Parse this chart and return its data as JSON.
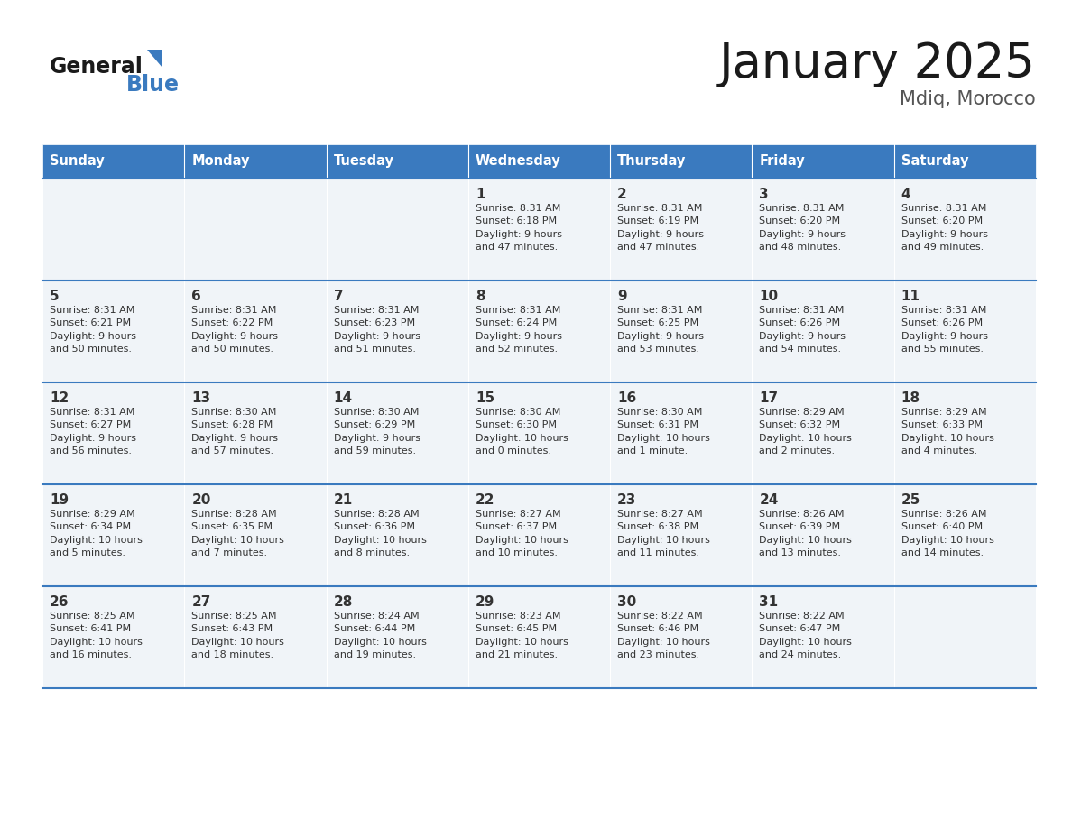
{
  "title": "January 2025",
  "subtitle": "Mdiq, Morocco",
  "days_of_week": [
    "Sunday",
    "Monday",
    "Tuesday",
    "Wednesday",
    "Thursday",
    "Friday",
    "Saturday"
  ],
  "header_bg": "#3a7abf",
  "header_text": "#ffffff",
  "row_bg": "#f0f4f8",
  "cell_border_color": "#3a7abf",
  "day_number_color": "#333333",
  "info_text_color": "#333333",
  "title_color": "#1a1a1a",
  "subtitle_color": "#555555",
  "logo_general_color": "#1a1a1a",
  "logo_blue_color": "#3a7abf",
  "weeks": [
    [
      {
        "day": null,
        "info": null
      },
      {
        "day": null,
        "info": null
      },
      {
        "day": null,
        "info": null
      },
      {
        "day": 1,
        "info": "Sunrise: 8:31 AM\nSunset: 6:18 PM\nDaylight: 9 hours\nand 47 minutes."
      },
      {
        "day": 2,
        "info": "Sunrise: 8:31 AM\nSunset: 6:19 PM\nDaylight: 9 hours\nand 47 minutes."
      },
      {
        "day": 3,
        "info": "Sunrise: 8:31 AM\nSunset: 6:20 PM\nDaylight: 9 hours\nand 48 minutes."
      },
      {
        "day": 4,
        "info": "Sunrise: 8:31 AM\nSunset: 6:20 PM\nDaylight: 9 hours\nand 49 minutes."
      }
    ],
    [
      {
        "day": 5,
        "info": "Sunrise: 8:31 AM\nSunset: 6:21 PM\nDaylight: 9 hours\nand 50 minutes."
      },
      {
        "day": 6,
        "info": "Sunrise: 8:31 AM\nSunset: 6:22 PM\nDaylight: 9 hours\nand 50 minutes."
      },
      {
        "day": 7,
        "info": "Sunrise: 8:31 AM\nSunset: 6:23 PM\nDaylight: 9 hours\nand 51 minutes."
      },
      {
        "day": 8,
        "info": "Sunrise: 8:31 AM\nSunset: 6:24 PM\nDaylight: 9 hours\nand 52 minutes."
      },
      {
        "day": 9,
        "info": "Sunrise: 8:31 AM\nSunset: 6:25 PM\nDaylight: 9 hours\nand 53 minutes."
      },
      {
        "day": 10,
        "info": "Sunrise: 8:31 AM\nSunset: 6:26 PM\nDaylight: 9 hours\nand 54 minutes."
      },
      {
        "day": 11,
        "info": "Sunrise: 8:31 AM\nSunset: 6:26 PM\nDaylight: 9 hours\nand 55 minutes."
      }
    ],
    [
      {
        "day": 12,
        "info": "Sunrise: 8:31 AM\nSunset: 6:27 PM\nDaylight: 9 hours\nand 56 minutes."
      },
      {
        "day": 13,
        "info": "Sunrise: 8:30 AM\nSunset: 6:28 PM\nDaylight: 9 hours\nand 57 minutes."
      },
      {
        "day": 14,
        "info": "Sunrise: 8:30 AM\nSunset: 6:29 PM\nDaylight: 9 hours\nand 59 minutes."
      },
      {
        "day": 15,
        "info": "Sunrise: 8:30 AM\nSunset: 6:30 PM\nDaylight: 10 hours\nand 0 minutes."
      },
      {
        "day": 16,
        "info": "Sunrise: 8:30 AM\nSunset: 6:31 PM\nDaylight: 10 hours\nand 1 minute."
      },
      {
        "day": 17,
        "info": "Sunrise: 8:29 AM\nSunset: 6:32 PM\nDaylight: 10 hours\nand 2 minutes."
      },
      {
        "day": 18,
        "info": "Sunrise: 8:29 AM\nSunset: 6:33 PM\nDaylight: 10 hours\nand 4 minutes."
      }
    ],
    [
      {
        "day": 19,
        "info": "Sunrise: 8:29 AM\nSunset: 6:34 PM\nDaylight: 10 hours\nand 5 minutes."
      },
      {
        "day": 20,
        "info": "Sunrise: 8:28 AM\nSunset: 6:35 PM\nDaylight: 10 hours\nand 7 minutes."
      },
      {
        "day": 21,
        "info": "Sunrise: 8:28 AM\nSunset: 6:36 PM\nDaylight: 10 hours\nand 8 minutes."
      },
      {
        "day": 22,
        "info": "Sunrise: 8:27 AM\nSunset: 6:37 PM\nDaylight: 10 hours\nand 10 minutes."
      },
      {
        "day": 23,
        "info": "Sunrise: 8:27 AM\nSunset: 6:38 PM\nDaylight: 10 hours\nand 11 minutes."
      },
      {
        "day": 24,
        "info": "Sunrise: 8:26 AM\nSunset: 6:39 PM\nDaylight: 10 hours\nand 13 minutes."
      },
      {
        "day": 25,
        "info": "Sunrise: 8:26 AM\nSunset: 6:40 PM\nDaylight: 10 hours\nand 14 minutes."
      }
    ],
    [
      {
        "day": 26,
        "info": "Sunrise: 8:25 AM\nSunset: 6:41 PM\nDaylight: 10 hours\nand 16 minutes."
      },
      {
        "day": 27,
        "info": "Sunrise: 8:25 AM\nSunset: 6:43 PM\nDaylight: 10 hours\nand 18 minutes."
      },
      {
        "day": 28,
        "info": "Sunrise: 8:24 AM\nSunset: 6:44 PM\nDaylight: 10 hours\nand 19 minutes."
      },
      {
        "day": 29,
        "info": "Sunrise: 8:23 AM\nSunset: 6:45 PM\nDaylight: 10 hours\nand 21 minutes."
      },
      {
        "day": 30,
        "info": "Sunrise: 8:22 AM\nSunset: 6:46 PM\nDaylight: 10 hours\nand 23 minutes."
      },
      {
        "day": 31,
        "info": "Sunrise: 8:22 AM\nSunset: 6:47 PM\nDaylight: 10 hours\nand 24 minutes."
      },
      {
        "day": null,
        "info": null
      }
    ]
  ]
}
